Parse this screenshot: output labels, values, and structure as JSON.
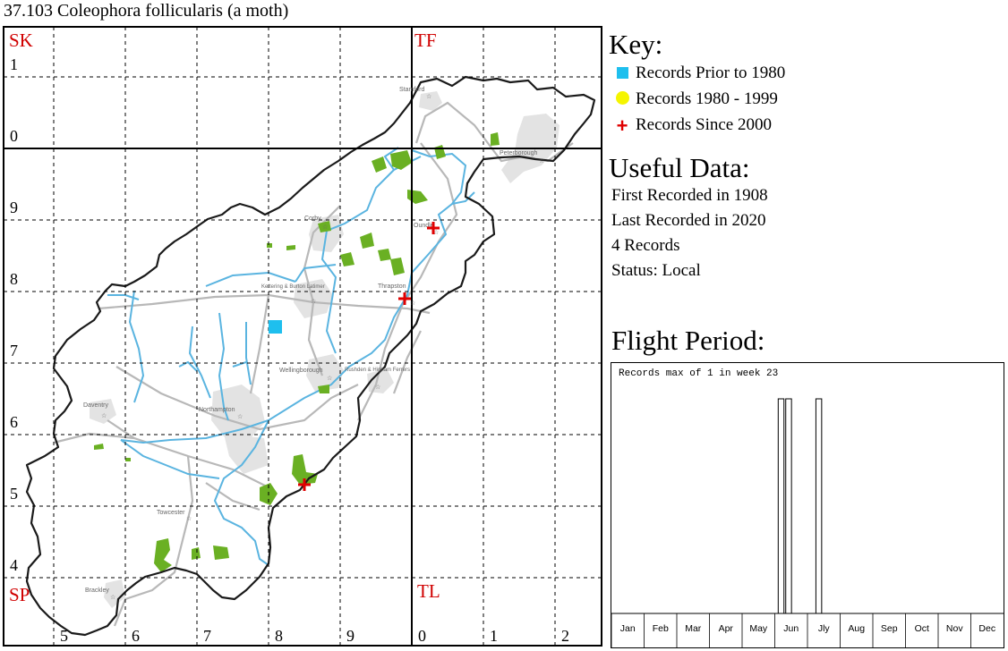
{
  "title": "37.103 Coleophora follicularis (a moth)",
  "map": {
    "square_labels": [
      "SK",
      "TF",
      "SP",
      "TL"
    ],
    "northing_labels": [
      "1",
      "0",
      "9",
      "8",
      "7",
      "6",
      "5",
      "4"
    ],
    "easting_labels": [
      "5",
      "6",
      "7",
      "8",
      "9",
      "0",
      "1",
      "2"
    ],
    "towns": [
      "Stamford",
      "Peterborough",
      "Corby",
      "Oundle",
      "Kettering & Burton Latimer",
      "Thrapston",
      "Wellingborough",
      "Rushden & Higham Ferrers",
      "Daventry",
      "Northampton",
      "Towcester",
      "Brackley"
    ],
    "colors": {
      "county": "#000000",
      "grid": "#000000",
      "river": "#5ab4e0",
      "roads": "#b8b8b8",
      "woodland": "#6ab023",
      "urban": "#e3e3e3",
      "record_pre1980": "#1ebfee",
      "record_1980_1999": "#f5f500",
      "record_since2000": "#e00000"
    },
    "records": [
      {
        "category": "Records Prior to 1980",
        "symbol": "square",
        "count": 1
      },
      {
        "category": "Records Since 2000",
        "symbol": "cross",
        "count": 3
      }
    ]
  },
  "key": {
    "title": "Key:",
    "items": [
      {
        "symbol": "square",
        "label": "Records Prior to 1980"
      },
      {
        "symbol": "circle",
        "label": "Records 1980 - 1999"
      },
      {
        "symbol": "cross",
        "label": "Records Since 2000"
      }
    ]
  },
  "useful": {
    "title": "Useful Data:",
    "lines": [
      "First Recorded in 1908",
      "Last Recorded in 2020",
      "4 Records",
      "Status: Local"
    ]
  },
  "flight": {
    "title": "Flight Period:",
    "caption": "Records max of 1 in week 23",
    "months": [
      "Jan",
      "Feb",
      "Mar",
      "Apr",
      "May",
      "Jun",
      "Jly",
      "Aug",
      "Sep",
      "Oct",
      "Nov",
      "Dec"
    ],
    "weeks_total": 52,
    "max_records": 1,
    "bars": [
      {
        "week": 23,
        "records": 1
      },
      {
        "week": 24,
        "records": 1
      },
      {
        "week": 28,
        "records": 1
      }
    ]
  }
}
